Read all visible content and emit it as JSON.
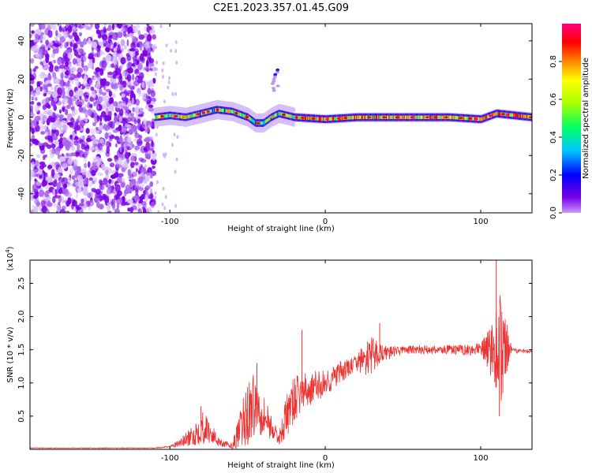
{
  "title": "C2E1.2023.357.01.45.G09",
  "chart_data": [
    {
      "type": "heatmap",
      "xlabel": "Height of straight line (km)",
      "ylabel": "Frequency (Hz)",
      "xlim": [
        -190,
        133
      ],
      "ylim": [
        -50,
        49
      ],
      "xticks": [
        -100,
        0,
        100
      ],
      "yticks": [
        -40,
        -20,
        0,
        20,
        40
      ],
      "colorbar": {
        "label": "Normalized spectral amplitude",
        "range": [
          0,
          1
        ],
        "ticks": [
          "0.0",
          "0.2",
          "0.4",
          "0.6",
          "0.8"
        ],
        "colormap": [
          "#cc99ff",
          "#7a00e6",
          "#0000ff",
          "#00c8ff",
          "#00ff66",
          "#aaff00",
          "#ffff00",
          "#ff8800",
          "#ff0000",
          "#ff0080"
        ]
      },
      "noise_region_x": [
        -190,
        -110
      ],
      "ridge": {
        "x": [
          -110,
          -100,
          -90,
          -80,
          -70,
          -60,
          -50,
          -45,
          -40,
          -35,
          -30,
          -20,
          0,
          20,
          30,
          50,
          80,
          100,
          110,
          133
        ],
        "freq": [
          0,
          1,
          0,
          2,
          4,
          3,
          0,
          -3,
          -3,
          0,
          2,
          0,
          -1,
          0,
          0,
          0,
          0,
          -1,
          2,
          0
        ]
      },
      "side_blob": {
        "x": -32,
        "freq": [
          14,
          25
        ]
      }
    },
    {
      "type": "line",
      "xlabel": "Height of straight line (km)",
      "ylabel": "SNR (10 * v/v)",
      "y_multiplier": "(x10",
      "y_multiplier_exp": "4",
      "y_multiplier_close": ")",
      "xlim": [
        -190,
        133
      ],
      "ylim": [
        0,
        2.85
      ],
      "xticks": [
        -100,
        0,
        100
      ],
      "yticks": [
        0.5,
        1.0,
        1.5,
        2.0,
        2.5
      ],
      "color": "#ee3333",
      "envelope": {
        "x": [
          -190,
          -110,
          -100,
          -95,
          -85,
          -80,
          -75,
          -70,
          -65,
          -60,
          -55,
          -50,
          -45,
          -40,
          -35,
          -30,
          -25,
          -20,
          -15,
          -10,
          -5,
          0,
          10,
          20,
          25,
          30,
          35,
          40,
          50,
          60,
          70,
          80,
          90,
          100,
          105,
          110,
          113,
          120,
          133
        ],
        "y": [
          0.02,
          0.02,
          0.04,
          0.08,
          0.2,
          0.35,
          0.28,
          0.15,
          0.08,
          0.05,
          0.25,
          0.55,
          0.7,
          0.55,
          0.35,
          0.15,
          0.5,
          0.75,
          0.85,
          0.9,
          0.95,
          1.0,
          1.15,
          1.3,
          1.35,
          1.4,
          1.45,
          1.45,
          1.5,
          1.5,
          1.5,
          1.5,
          1.5,
          1.5,
          1.5,
          1.5,
          1.5,
          1.48,
          1.48
        ],
        "amp": [
          0.005,
          0.005,
          0.01,
          0.06,
          0.15,
          0.28,
          0.2,
          0.1,
          0.05,
          0.04,
          0.3,
          0.55,
          0.45,
          0.35,
          0.2,
          0.08,
          0.35,
          0.35,
          0.3,
          0.25,
          0.25,
          0.2,
          0.18,
          0.12,
          0.25,
          0.3,
          0.15,
          0.1,
          0.06,
          0.07,
          0.07,
          0.07,
          0.08,
          0.1,
          0.3,
          0.7,
          0.9,
          0.04,
          0.03
        ]
      },
      "spikes": [
        {
          "x": -80,
          "y": 0.65
        },
        {
          "x": -44,
          "y": 1.3
        },
        {
          "x": -15,
          "y": 1.8
        },
        {
          "x": 35,
          "y": 1.9
        },
        {
          "x": 110,
          "y": 2.85
        },
        {
          "x": 112,
          "y": 0.5
        }
      ]
    }
  ]
}
